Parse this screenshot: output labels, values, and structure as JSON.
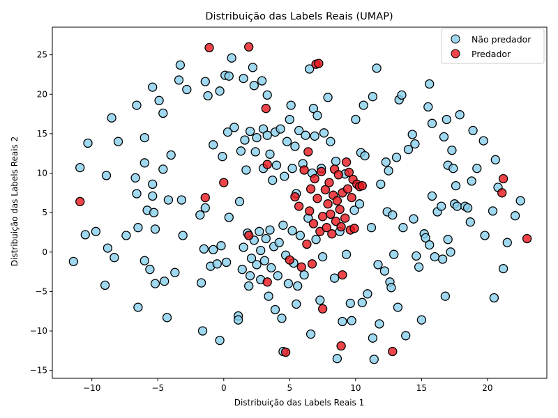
{
  "chart_data": {
    "type": "scatter",
    "title": "Distribuição das Labels Reais (UMAP)",
    "xlabel": "Distribuição das Labels Reais  1",
    "ylabel": "Distribuição das Labels Reais  2",
    "xlim": [
      -13,
      24.5
    ],
    "ylim": [
      -16,
      28.5
    ],
    "xticks": [
      -10,
      -5,
      0,
      5,
      10,
      15,
      20
    ],
    "yticks": [
      -15,
      -10,
      -5,
      0,
      5,
      10,
      15,
      20,
      25
    ],
    "grid": false,
    "legend": "top-right",
    "series": [
      {
        "name": "Não predador",
        "color": "#87ceeb",
        "points": [
          [
            -11.4,
            -1.2
          ],
          [
            -10.9,
            10.7
          ],
          [
            -10.5,
            2.2
          ],
          [
            -10.3,
            13.8
          ],
          [
            -9.7,
            2.6
          ],
          [
            -9.0,
            -4.2
          ],
          [
            -8.9,
            9.7
          ],
          [
            -8.8,
            0.5
          ],
          [
            -8.5,
            17.0
          ],
          [
            -8.3,
            -0.7
          ],
          [
            -8.0,
            14.0
          ],
          [
            -7.4,
            2.1
          ],
          [
            -6.7,
            9.4
          ],
          [
            -6.6,
            7.4
          ],
          [
            -6.6,
            18.6
          ],
          [
            -6.5,
            3.1
          ],
          [
            -6.5,
            -7.0
          ],
          [
            -6.0,
            11.3
          ],
          [
            -6.0,
            14.5
          ],
          [
            -6.0,
            -1.1
          ],
          [
            -5.8,
            5.3
          ],
          [
            -5.6,
            -2.2
          ],
          [
            -5.4,
            20.9
          ],
          [
            -5.4,
            7.1
          ],
          [
            -5.4,
            8.6
          ],
          [
            -5.3,
            5.0
          ],
          [
            -5.2,
            2.9
          ],
          [
            -5.2,
            -4.0
          ],
          [
            -4.9,
            19.2
          ],
          [
            -4.6,
            17.6
          ],
          [
            -4.6,
            10.5
          ],
          [
            -4.5,
            -3.7
          ],
          [
            -4.3,
            -8.3
          ],
          [
            -4.2,
            6.6
          ],
          [
            -4.0,
            12.3
          ],
          [
            -3.7,
            -2.6
          ],
          [
            -3.4,
            21.8
          ],
          [
            -3.3,
            23.7
          ],
          [
            -3.2,
            6.6
          ],
          [
            -3.1,
            2.1
          ],
          [
            -2.8,
            20.6
          ],
          [
            -1.8,
            4.7
          ],
          [
            -1.7,
            -3.9
          ],
          [
            -1.6,
            -10.0
          ],
          [
            -1.5,
            0.4
          ],
          [
            -1.4,
            5.6
          ],
          [
            -1.4,
            21.6
          ],
          [
            -1.2,
            19.8
          ],
          [
            -1.0,
            -1.8
          ],
          [
            -0.8,
            13.6
          ],
          [
            -0.8,
            0.3
          ],
          [
            -0.5,
            -1.5
          ],
          [
            -0.3,
            -11.2
          ],
          [
            -0.3,
            20.4
          ],
          [
            -0.2,
            0.8
          ],
          [
            -0.1,
            12.1
          ],
          [
            0.1,
            22.4
          ],
          [
            0.2,
            -1.3
          ],
          [
            0.3,
            15.2
          ],
          [
            0.4,
            4.4
          ],
          [
            0.4,
            22.3
          ],
          [
            0.6,
            24.6
          ],
          [
            0.8,
            15.8
          ],
          [
            1.1,
            -8.1
          ],
          [
            1.1,
            -8.6
          ],
          [
            1.2,
            6.4
          ],
          [
            1.3,
            12.8
          ],
          [
            1.4,
            -2.2
          ],
          [
            1.5,
            0.6
          ],
          [
            1.5,
            22.0
          ],
          [
            1.6,
            14.2
          ],
          [
            1.7,
            10.4
          ],
          [
            1.8,
            2.4
          ],
          [
            1.9,
            -4.3
          ],
          [
            2.0,
            -3.0
          ],
          [
            2.0,
            15.3
          ],
          [
            2.1,
            -0.8
          ],
          [
            2.2,
            23.4
          ],
          [
            2.3,
            21.1
          ],
          [
            2.3,
            1.5
          ],
          [
            2.4,
            12.7
          ],
          [
            2.5,
            -1.6
          ],
          [
            2.5,
            14.5
          ],
          [
            2.7,
            2.6
          ],
          [
            2.8,
            -3.5
          ],
          [
            2.8,
            0.2
          ],
          [
            2.9,
            21.7
          ],
          [
            3.0,
            10.6
          ],
          [
            3.0,
            15.6
          ],
          [
            3.1,
            -1.1
          ],
          [
            3.2,
            1.7
          ],
          [
            3.3,
            14.8
          ],
          [
            3.3,
            19.9
          ],
          [
            3.4,
            -5.6
          ],
          [
            3.5,
            12.4
          ],
          [
            3.5,
            2.8
          ],
          [
            3.6,
            -2.0
          ],
          [
            3.7,
            9.1
          ],
          [
            3.8,
            0.7
          ],
          [
            3.9,
            15.2
          ],
          [
            3.9,
            -7.3
          ],
          [
            4.0,
            11.0
          ],
          [
            4.1,
            -3.0
          ],
          [
            4.2,
            1.2
          ],
          [
            4.3,
            15.6
          ],
          [
            4.4,
            -8.4
          ],
          [
            4.5,
            -12.6
          ],
          [
            4.5,
            3.4
          ],
          [
            4.6,
            9.6
          ],
          [
            4.7,
            -0.4
          ],
          [
            4.8,
            14.0
          ],
          [
            4.9,
            -4.0
          ],
          [
            5.0,
            16.8
          ],
          [
            5.1,
            18.6
          ],
          [
            5.2,
            2.7
          ],
          [
            5.2,
            10.6
          ],
          [
            5.3,
            -1.4
          ],
          [
            5.4,
            13.4
          ],
          [
            5.5,
            -6.6
          ],
          [
            5.5,
            7.4
          ],
          [
            5.6,
            -4.3
          ],
          [
            5.7,
            15.4
          ],
          [
            5.8,
            2.1
          ],
          [
            6.0,
            11.2
          ],
          [
            6.1,
            -2.9
          ],
          [
            6.2,
            14.8
          ],
          [
            6.4,
            4.3
          ],
          [
            6.5,
            23.2
          ],
          [
            6.6,
            -10.4
          ],
          [
            6.7,
            10.0
          ],
          [
            6.8,
            18.2
          ],
          [
            6.9,
            14.7
          ],
          [
            7.0,
            1.6
          ],
          [
            7.1,
            17.3
          ],
          [
            7.3,
            -6.1
          ],
          [
            7.4,
            10.6
          ],
          [
            7.5,
            -0.6
          ],
          [
            7.6,
            15.1
          ],
          [
            7.9,
            19.6
          ],
          [
            8.1,
            14.0
          ],
          [
            8.4,
            -3.3
          ],
          [
            8.5,
            11.5
          ],
          [
            8.6,
            -13.5
          ],
          [
            8.8,
            2.6
          ],
          [
            9.0,
            -8.8
          ],
          [
            9.2,
            9.9
          ],
          [
            9.3,
            -0.3
          ],
          [
            9.6,
            -6.5
          ],
          [
            9.7,
            -8.7
          ],
          [
            9.9,
            5.3
          ],
          [
            10.0,
            16.8
          ],
          [
            10.3,
            6.1
          ],
          [
            10.4,
            12.6
          ],
          [
            10.5,
            -6.4
          ],
          [
            10.6,
            18.6
          ],
          [
            10.7,
            12.2
          ],
          [
            10.9,
            -5.3
          ],
          [
            11.2,
            3.1
          ],
          [
            11.3,
            19.7
          ],
          [
            11.3,
            -10.9
          ],
          [
            11.4,
            -13.6
          ],
          [
            11.6,
            23.3
          ],
          [
            11.7,
            -1.6
          ],
          [
            11.8,
            -9.1
          ],
          [
            11.9,
            8.6
          ],
          [
            12.2,
            -2.4
          ],
          [
            12.3,
            11.4
          ],
          [
            12.4,
            5.1
          ],
          [
            12.5,
            10.3
          ],
          [
            12.6,
            -3.8
          ],
          [
            12.7,
            -4.5
          ],
          [
            12.8,
            4.7
          ],
          [
            12.9,
            -0.3
          ],
          [
            13.1,
            12.0
          ],
          [
            13.2,
            -7.0
          ],
          [
            13.3,
            19.3
          ],
          [
            13.5,
            19.9
          ],
          [
            13.6,
            3.1
          ],
          [
            13.8,
            -10.6
          ],
          [
            14.0,
            13.0
          ],
          [
            14.3,
            14.9
          ],
          [
            14.4,
            4.2
          ],
          [
            14.5,
            13.7
          ],
          [
            14.6,
            -0.5
          ],
          [
            14.8,
            -1.9
          ],
          [
            15.0,
            -8.6
          ],
          [
            15.2,
            2.3
          ],
          [
            15.3,
            1.8
          ],
          [
            15.5,
            18.4
          ],
          [
            15.6,
            21.3
          ],
          [
            15.6,
            0.9
          ],
          [
            15.8,
            16.3
          ],
          [
            15.8,
            7.1
          ],
          [
            16.0,
            -0.6
          ],
          [
            16.2,
            5.1
          ],
          [
            16.5,
            5.8
          ],
          [
            16.6,
            -0.9
          ],
          [
            16.7,
            14.6
          ],
          [
            16.8,
            -5.6
          ],
          [
            16.9,
            16.8
          ],
          [
            17.0,
            1.6
          ],
          [
            17.0,
            11.0
          ],
          [
            17.2,
            0.0
          ],
          [
            17.3,
            12.9
          ],
          [
            17.4,
            10.6
          ],
          [
            17.5,
            6.1
          ],
          [
            17.6,
            8.4
          ],
          [
            17.7,
            5.8
          ],
          [
            17.9,
            17.4
          ],
          [
            18.3,
            5.8
          ],
          [
            18.5,
            5.6
          ],
          [
            18.7,
            3.8
          ],
          [
            18.8,
            9.0
          ],
          [
            18.9,
            15.4
          ],
          [
            19.2,
            10.6
          ],
          [
            19.7,
            14.1
          ],
          [
            19.8,
            2.1
          ],
          [
            20.4,
            5.2
          ],
          [
            20.5,
            -5.8
          ],
          [
            20.6,
            11.7
          ],
          [
            20.8,
            8.2
          ],
          [
            21.2,
            -2.1
          ],
          [
            21.5,
            1.2
          ],
          [
            22.1,
            4.6
          ],
          [
            22.5,
            6.5
          ]
        ]
      },
      {
        "name": "Predador",
        "color": "#e8161d",
        "points": [
          [
            -10.9,
            6.4
          ],
          [
            -1.4,
            6.9
          ],
          [
            -1.1,
            25.9
          ],
          [
            0.0,
            8.8
          ],
          [
            1.9,
            26.0
          ],
          [
            1.9,
            2.1
          ],
          [
            3.2,
            18.2
          ],
          [
            3.3,
            11.1
          ],
          [
            3.3,
            -3.8
          ],
          [
            4.7,
            -12.7
          ],
          [
            5.0,
            -1.0
          ],
          [
            5.4,
            7.0
          ],
          [
            5.7,
            5.8
          ],
          [
            5.9,
            -1.9
          ],
          [
            6.1,
            10.4
          ],
          [
            6.3,
            1.0
          ],
          [
            6.4,
            12.7
          ],
          [
            6.5,
            5.2
          ],
          [
            6.6,
            8.0
          ],
          [
            6.7,
            -1.5
          ],
          [
            6.8,
            3.6
          ],
          [
            6.9,
            9.3
          ],
          [
            7.0,
            23.8
          ],
          [
            7.1,
            6.8
          ],
          [
            7.2,
            23.9
          ],
          [
            7.3,
            2.6
          ],
          [
            7.4,
            10.2
          ],
          [
            7.5,
            -7.2
          ],
          [
            7.5,
            4.5
          ],
          [
            7.7,
            7.9
          ],
          [
            7.8,
            3.1
          ],
          [
            7.9,
            6.1
          ],
          [
            8.0,
            8.8
          ],
          [
            8.1,
            4.8
          ],
          [
            8.2,
            2.3
          ],
          [
            8.3,
            7.2
          ],
          [
            8.4,
            10.5
          ],
          [
            8.5,
            3.9
          ],
          [
            8.6,
            6.5
          ],
          [
            8.7,
            9.8
          ],
          [
            8.8,
            5.4
          ],
          [
            8.9,
            -11.9
          ],
          [
            8.9,
            3.2
          ],
          [
            9.0,
            -2.9
          ],
          [
            9.0,
            7.5
          ],
          [
            9.2,
            4.3
          ],
          [
            9.3,
            11.4
          ],
          [
            9.4,
            8.0
          ],
          [
            9.5,
            10.1
          ],
          [
            9.6,
            2.8
          ],
          [
            9.7,
            6.9
          ],
          [
            9.8,
            9.2
          ],
          [
            9.9,
            3.0
          ],
          [
            10.1,
            8.6
          ],
          [
            10.3,
            8.3
          ],
          [
            10.5,
            8.4
          ],
          [
            12.8,
            -12.6
          ],
          [
            21.1,
            7.5
          ],
          [
            21.2,
            9.3
          ],
          [
            23.0,
            1.7
          ]
        ]
      }
    ]
  }
}
